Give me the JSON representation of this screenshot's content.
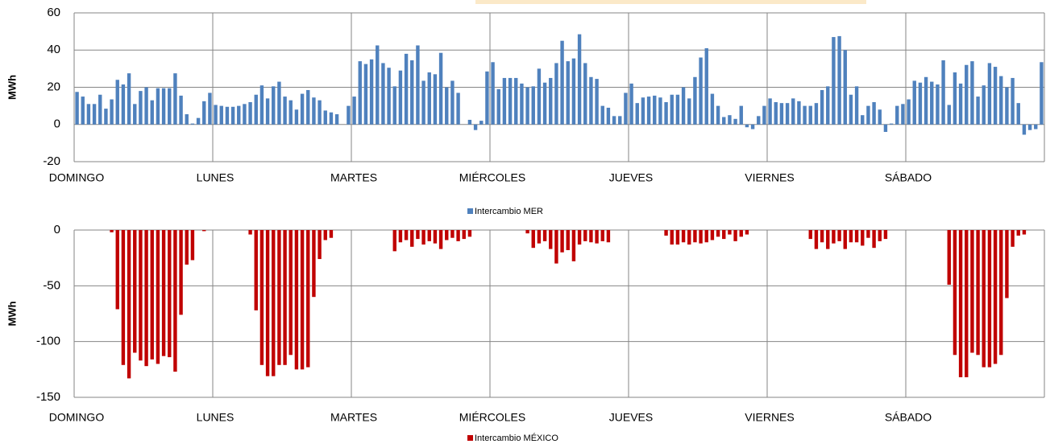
{
  "chart_data": [
    {
      "type": "bar",
      "y_label": "MWh",
      "categories": [
        "DOMINGO",
        null,
        null,
        null,
        null,
        null,
        null,
        null,
        null,
        null,
        null,
        null,
        null,
        null,
        null,
        null,
        null,
        null,
        null,
        null,
        null,
        null,
        null,
        null,
        "LUNES",
        null,
        null,
        null,
        null,
        null,
        null,
        null,
        null,
        null,
        null,
        null,
        null,
        null,
        null,
        null,
        null,
        null,
        null,
        null,
        null,
        null,
        null,
        null,
        "MARTES",
        null,
        null,
        null,
        null,
        null,
        null,
        null,
        null,
        null,
        null,
        null,
        null,
        null,
        null,
        null,
        null,
        null,
        null,
        null,
        null,
        null,
        null,
        null,
        "MIÉRCOLES",
        null,
        null,
        null,
        null,
        null,
        null,
        null,
        null,
        null,
        null,
        null,
        null,
        null,
        null,
        null,
        null,
        null,
        null,
        null,
        null,
        null,
        null,
        null,
        "JUEVES",
        null,
        null,
        null,
        null,
        null,
        null,
        null,
        null,
        null,
        null,
        null,
        null,
        null,
        null,
        null,
        null,
        null,
        null,
        null,
        null,
        null,
        null,
        null,
        "VIERNES",
        null,
        null,
        null,
        null,
        null,
        null,
        null,
        null,
        null,
        null,
        null,
        null,
        null,
        null,
        null,
        null,
        null,
        null,
        null,
        null,
        null,
        null,
        null,
        "SÁBADO",
        null,
        null,
        null,
        null,
        null,
        null,
        null,
        null,
        null,
        null,
        null,
        null,
        null,
        null,
        null,
        null,
        null,
        null,
        null,
        null,
        null,
        null,
        null
      ],
      "series": [
        {
          "name": "Intercambio MER",
          "color": "#4f81bd",
          "values": [
            17.5,
            15,
            11,
            11,
            16,
            8.5,
            13.5,
            24,
            21.5,
            27.5,
            11,
            18,
            20,
            13,
            19.5,
            19.5,
            19.5,
            27.5,
            15.5,
            5.5,
            0.5,
            3.5,
            12.5,
            17,
            10.5,
            10,
            9.5,
            9.5,
            10,
            11,
            12,
            16,
            21,
            14,
            20.5,
            23,
            15,
            13,
            8,
            16.5,
            18.5,
            14.5,
            13,
            7.5,
            6.5,
            5.5,
            0,
            10,
            15,
            34,
            32.5,
            35,
            42.5,
            33,
            30.5,
            20.5,
            29,
            38,
            34.5,
            42.5,
            23.5,
            28,
            27,
            38.5,
            20,
            23.5,
            17,
            0,
            2.5,
            -3,
            2,
            28.5,
            33.5,
            19,
            25,
            25,
            25,
            22,
            20,
            20.5,
            30,
            22.5,
            25,
            33,
            45,
            34,
            35.5,
            48.5,
            33,
            25.5,
            24.5,
            10,
            9,
            4.5,
            4.5,
            17,
            22,
            11.5,
            14.5,
            15,
            15.5,
            14.5,
            12,
            16,
            16,
            20,
            14,
            25.5,
            36,
            41,
            16.5,
            10,
            4,
            5,
            3,
            10,
            -1.5,
            -2.5,
            4.5,
            10,
            14,
            12,
            11.5,
            11.5,
            14,
            12.5,
            10,
            10,
            11.5,
            18.5,
            20.5,
            47,
            47.5,
            40,
            16,
            20.5,
            5,
            10,
            12,
            8,
            -4,
            0.5,
            10,
            11,
            13.5,
            23.5,
            22.5,
            25.5,
            23,
            21.5,
            34.5,
            10.5,
            28,
            22,
            32,
            34,
            15,
            21,
            33,
            31,
            26,
            20,
            25,
            11.5,
            -5.5,
            -3,
            -2.5,
            33.5
          ]
        }
      ],
      "ylim": [
        -20,
        60
      ],
      "yticks": [
        -20,
        0,
        20,
        40,
        60
      ],
      "grid": true,
      "legend": "bottom"
    },
    {
      "type": "bar",
      "y_label": "MWh",
      "categories": [
        "DOMINGO",
        null,
        null,
        null,
        null,
        null,
        null,
        null,
        null,
        null,
        null,
        null,
        null,
        null,
        null,
        null,
        null,
        null,
        null,
        null,
        null,
        null,
        null,
        null,
        "LUNES",
        null,
        null,
        null,
        null,
        null,
        null,
        null,
        null,
        null,
        null,
        null,
        null,
        null,
        null,
        null,
        null,
        null,
        null,
        null,
        null,
        null,
        null,
        null,
        "MARTES",
        null,
        null,
        null,
        null,
        null,
        null,
        null,
        null,
        null,
        null,
        null,
        null,
        null,
        null,
        null,
        null,
        null,
        null,
        null,
        null,
        null,
        null,
        null,
        "MIÉRCOLES",
        null,
        null,
        null,
        null,
        null,
        null,
        null,
        null,
        null,
        null,
        null,
        null,
        null,
        null,
        null,
        null,
        null,
        null,
        null,
        null,
        null,
        null,
        null,
        "JUEVES",
        null,
        null,
        null,
        null,
        null,
        null,
        null,
        null,
        null,
        null,
        null,
        null,
        null,
        null,
        null,
        null,
        null,
        null,
        null,
        null,
        null,
        null,
        null,
        "VIERNES",
        null,
        null,
        null,
        null,
        null,
        null,
        null,
        null,
        null,
        null,
        null,
        null,
        null,
        null,
        null,
        null,
        null,
        null,
        null,
        null,
        null,
        null,
        null,
        "SÁBADO",
        null,
        null,
        null,
        null,
        null,
        null,
        null,
        null,
        null,
        null,
        null,
        null,
        null,
        null,
        null,
        null,
        null,
        null,
        null,
        null,
        null,
        null,
        null
      ],
      "series": [
        {
          "name": "Intercambio MÉXICO",
          "color": "#c00000",
          "values": [
            0,
            0,
            0,
            0,
            0,
            0,
            -2,
            -71,
            -121,
            -133,
            -110,
            -117,
            -122,
            -116,
            -120,
            -113,
            -114,
            -127,
            -76,
            -31,
            -27,
            0,
            -1,
            0,
            0,
            0,
            0,
            0,
            0,
            0,
            -4,
            -72,
            -121,
            -131,
            -131,
            -121,
            -121,
            -112,
            -125,
            -125,
            -123,
            -60,
            -26,
            -9,
            -7,
            0,
            0,
            0,
            0,
            0,
            0,
            0,
            0,
            0,
            0,
            -19,
            -11,
            -9,
            -15,
            -8,
            -13,
            -10,
            -12,
            -17,
            -9,
            -7,
            -10,
            -8,
            -6,
            0,
            0,
            0,
            0,
            0,
            0,
            0,
            0,
            0,
            -3,
            -16,
            -12,
            -10,
            -17,
            -30,
            -20,
            -18,
            -28,
            -13,
            -10,
            -11,
            -12,
            -10,
            -11,
            0,
            0,
            0,
            0,
            0,
            0,
            0,
            0,
            0,
            -5,
            -13,
            -13,
            -11,
            -13,
            -11,
            -12,
            -11,
            -9,
            -6,
            -8,
            -4,
            -10,
            -6,
            -4,
            0,
            0,
            0,
            0,
            0,
            0,
            0,
            0,
            0,
            0,
            -8,
            -17,
            -11,
            -17,
            -12,
            -10,
            -17,
            -11,
            -11,
            -14,
            -7,
            -16,
            -10,
            -8,
            0,
            0,
            0,
            0,
            0,
            0,
            0,
            0,
            0,
            0,
            -49,
            -112,
            -132,
            -132,
            -110,
            -112,
            -123,
            -123,
            -120,
            -112,
            -61,
            -15,
            -5,
            -4,
            0,
            0,
            0
          ]
        }
      ],
      "ylim": [
        -150,
        0
      ],
      "yticks": [
        -150,
        -100,
        -50,
        0
      ],
      "grid": true,
      "legend": "bottom"
    }
  ]
}
